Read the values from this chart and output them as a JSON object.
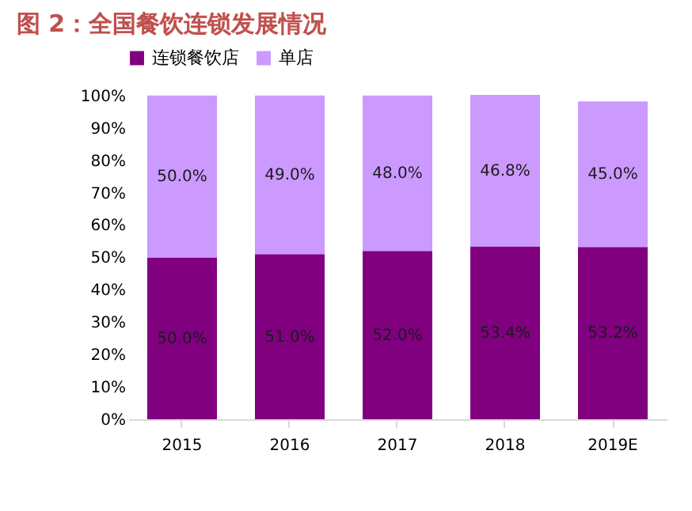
{
  "chart_data": {
    "type": "bar",
    "stacked": true,
    "title": "图 2：全国餐饮连锁发展情况",
    "categories": [
      "2015",
      "2016",
      "2017",
      "2018",
      "2019E"
    ],
    "series": [
      {
        "name": "连锁餐饮店",
        "color": "#800080",
        "values": [
          50.0,
          51.0,
          52.0,
          53.4,
          53.2
        ],
        "value_labels": [
          "50.0%",
          "51.0%",
          "52.0%",
          "53.4%",
          "53.2%"
        ]
      },
      {
        "name": "单店",
        "color": "#cc99ff",
        "values": [
          50.0,
          49.0,
          48.0,
          46.8,
          45.0
        ],
        "value_labels": [
          "50.0%",
          "49.0%",
          "48.0%",
          "46.8%",
          "45.0%"
        ]
      }
    ],
    "ylim": [
      0,
      100.2
    ],
    "yticks": [
      {
        "value": 0,
        "label": "0%"
      },
      {
        "value": 10,
        "label": "10%"
      },
      {
        "value": 20,
        "label": "20%"
      },
      {
        "value": 30,
        "label": "30%"
      },
      {
        "value": 40,
        "label": "40%"
      },
      {
        "value": 50,
        "label": "50%"
      },
      {
        "value": 60,
        "label": "60%"
      },
      {
        "value": 70,
        "label": "70%"
      },
      {
        "value": 80,
        "label": "80%"
      },
      {
        "value": 90,
        "label": "90%"
      },
      {
        "value": 100,
        "label": "100%"
      }
    ],
    "grid": false,
    "legend": "top"
  }
}
